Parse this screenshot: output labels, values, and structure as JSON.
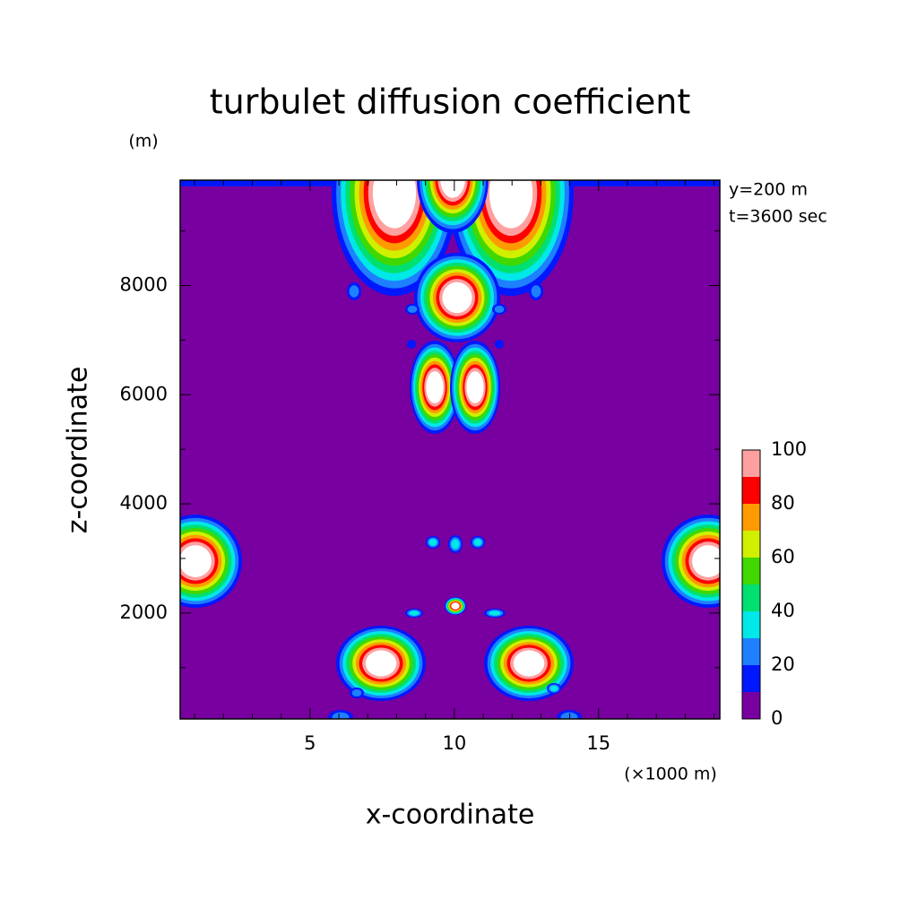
{
  "chart_data": {
    "type": "contour",
    "title": "turbulet diffusion coefficient",
    "y_unit": "(m)",
    "annotations": [
      "y=200 m",
      "t=3600 sec"
    ],
    "xlabel": "x-coordinate",
    "ylabel": "z-coordinate",
    "x_unit": "(×1000 m)",
    "xlim": [
      0.5,
      19.2
    ],
    "ylim": [
      60,
      9930
    ],
    "xticks": [
      5,
      10,
      15
    ],
    "yticks": [
      2000,
      4000,
      6000,
      8000
    ],
    "xminorticks": [
      1,
      2,
      3,
      4,
      6,
      7,
      8,
      9,
      11,
      12,
      13,
      14,
      16,
      17,
      18,
      19
    ],
    "yminorticks": [
      1000,
      3000,
      5000,
      7000,
      9000
    ],
    "levels": [
      0,
      10,
      20,
      30,
      40,
      50,
      60,
      70,
      80,
      90,
      100
    ],
    "colors": [
      "#7800a0",
      "#0018ff",
      "#1e80ff",
      "#00e8e8",
      "#00e070",
      "#40d800",
      "#d0f000",
      "#ff9a00",
      "#ff0000",
      "#ffa0a0"
    ],
    "over_color": "#ffffff",
    "colorbar_ticks": [
      0,
      20,
      40,
      60,
      80,
      100
    ]
  }
}
